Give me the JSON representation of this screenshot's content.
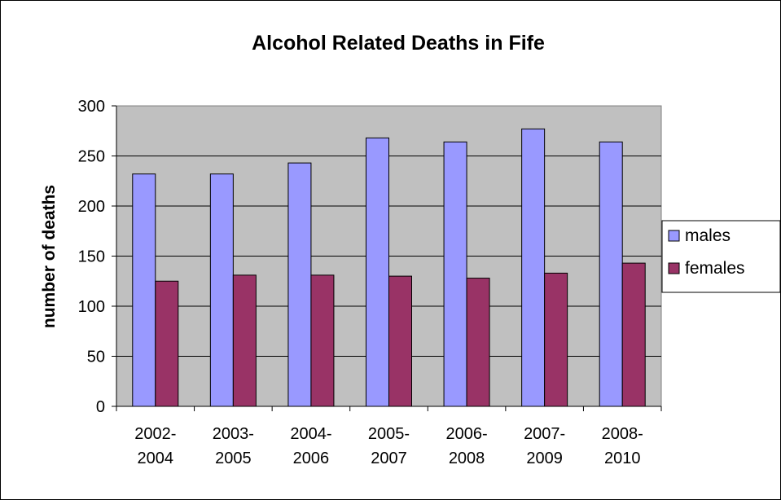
{
  "chart_data": {
    "type": "bar",
    "title": "Alcohol Related Deaths in Fife",
    "xlabel": "",
    "ylabel": "number of deaths",
    "ylim": [
      0,
      300
    ],
    "yticks": [
      "0",
      "50",
      "100",
      "150",
      "200",
      "250",
      "300"
    ],
    "categories": [
      [
        "2002-",
        "2004"
      ],
      [
        "2003-",
        "2005"
      ],
      [
        "2004-",
        "2006"
      ],
      [
        "2005-",
        "2007"
      ],
      [
        "2006-",
        "2008"
      ],
      [
        "2007-",
        "2009"
      ],
      [
        "2008-",
        "2010"
      ]
    ],
    "series": [
      {
        "name": "males",
        "color": "#9999ff",
        "values": [
          232,
          232,
          243,
          268,
          264,
          277,
          264
        ]
      },
      {
        "name": "females",
        "color": "#993366",
        "values": [
          125,
          131,
          131,
          130,
          128,
          133,
          143
        ]
      }
    ],
    "plot_background": "#c0c0c0",
    "grid": true,
    "legend_position": "right"
  }
}
